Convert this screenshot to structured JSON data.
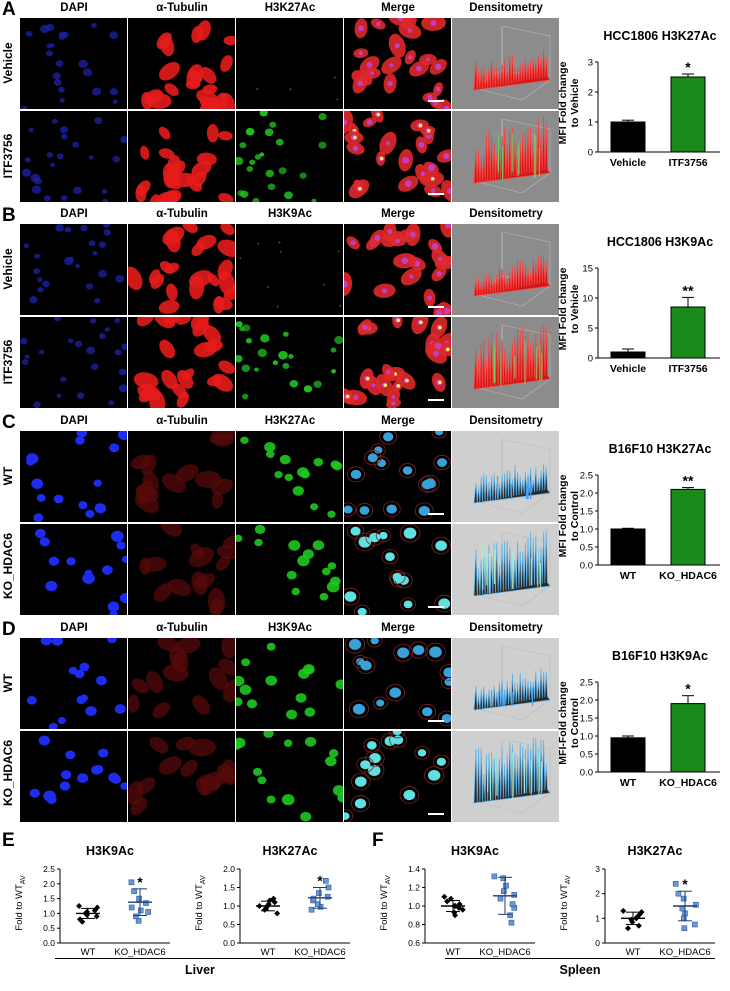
{
  "panels": [
    {
      "letter": "A",
      "headers": [
        "DAPI",
        "α-Tubulin",
        "H3K27Ac",
        "Merge",
        "Densitometry"
      ],
      "rows": [
        "Vehicle",
        "ITF3756"
      ],
      "theme": "hcc",
      "chart_data": {
        "type": "bar",
        "title": "HCC1806 H3K27Ac",
        "ylabel": "MFI Fold change to Vehicle",
        "categories": [
          "Vehicle",
          "ITF3756"
        ],
        "values": [
          1.0,
          2.5
        ],
        "errors": [
          0.06,
          0.1
        ],
        "colors": [
          "#000000",
          "#1a8a1a"
        ],
        "ylim": [
          0,
          3
        ],
        "yticks": [
          "0",
          "1",
          "2",
          "3"
        ],
        "significance": [
          "",
          "*"
        ]
      }
    },
    {
      "letter": "B",
      "headers": [
        "DAPI",
        "α-Tubulin",
        "H3K9Ac",
        "Merge",
        "Densitometry"
      ],
      "rows": [
        "Vehicle",
        "ITF3756"
      ],
      "theme": "hcc",
      "chart_data": {
        "type": "bar",
        "title": "HCC1806 H3K9Ac",
        "ylabel": "MFI Fold change to Vehicle",
        "categories": [
          "Vehicle",
          "ITF3756"
        ],
        "values": [
          1.0,
          8.5
        ],
        "errors": [
          0.5,
          1.6
        ],
        "colors": [
          "#000000",
          "#1a8a1a"
        ],
        "ylim": [
          0,
          15
        ],
        "yticks": [
          "0",
          "5",
          "10",
          "15"
        ],
        "significance": [
          "",
          "**"
        ]
      }
    },
    {
      "letter": "C",
      "headers": [
        "DAPI",
        "α-Tubulin",
        "H3K27Ac",
        "Merge",
        "Densitometry"
      ],
      "rows": [
        "WT",
        "KO_HDAC6"
      ],
      "theme": "b16",
      "chart_data": {
        "type": "bar",
        "title": "B16F10 H3K27Ac",
        "ylabel": "MFI Fold change to Control",
        "categories": [
          "WT",
          "KO_HDAC6"
        ],
        "values": [
          1.0,
          2.1
        ],
        "errors": [
          0.02,
          0.05
        ],
        "colors": [
          "#000000",
          "#1a8a1a"
        ],
        "ylim": [
          0,
          2.5
        ],
        "yticks": [
          "0.0",
          "0.5",
          "1.0",
          "1.5",
          "2.0",
          "2.5"
        ],
        "significance": [
          "",
          "**"
        ]
      }
    },
    {
      "letter": "D",
      "headers": [
        "DAPI",
        "α-Tubulin",
        "H3K9Ac",
        "Merge",
        "Densitometry"
      ],
      "rows": [
        "WT",
        "KO_HDAC6"
      ],
      "theme": "b16",
      "chart_data": {
        "type": "bar",
        "title": "B16F10 H3K9Ac",
        "ylabel": "MFI-Fold change to Control",
        "categories": [
          "WT",
          "KO_HDAC6"
        ],
        "values": [
          0.95,
          1.9
        ],
        "errors": [
          0.05,
          0.22
        ],
        "colors": [
          "#000000",
          "#1a8a1a"
        ],
        "ylim": [
          0,
          2.5
        ],
        "yticks": [
          "0.0",
          "0.5",
          "1.0",
          "1.5",
          "2.0",
          "2.5"
        ],
        "significance": [
          "",
          "*"
        ]
      }
    }
  ],
  "bottom": {
    "E": {
      "letter": "E",
      "group": "Liver"
    },
    "F": {
      "letter": "F",
      "group": "Spleen"
    },
    "ylabel_prefix": "Fold  to WT",
    "ylabel_sub": "AV"
  },
  "scatter_charts": [
    {
      "type": "scatter",
      "title": "H3K9Ac",
      "categories": [
        "WT",
        "KO_HDAC6"
      ],
      "ylim": [
        0,
        2.5
      ],
      "yticks": [
        "0.0",
        "0.5",
        "1.0",
        "1.5",
        "2.0",
        "2.5"
      ],
      "series": [
        {
          "values": [
            0.72,
            0.8,
            0.9,
            0.95,
            1.0,
            1.05,
            1.1,
            1.2,
            1.25
          ],
          "mean": 1.0,
          "sd": 0.17
        },
        {
          "values": [
            0.75,
            0.9,
            1.05,
            1.1,
            1.2,
            1.35,
            1.5,
            1.75,
            2.05
          ],
          "mean": 1.38,
          "sd": 0.45
        }
      ],
      "significance": "*"
    },
    {
      "type": "scatter",
      "title": "H3K27Ac",
      "categories": [
        "WT",
        "KO_HDAC6"
      ],
      "ylim": [
        0,
        2.0
      ],
      "yticks": [
        "0.0",
        "0.5",
        "1.0",
        "1.5",
        "2.0"
      ],
      "series": [
        {
          "values": [
            0.8,
            0.9,
            0.95,
            1.0,
            1.0,
            1.05,
            1.1,
            1.15,
            1.2
          ],
          "mean": 1.0,
          "sd": 0.13
        },
        {
          "values": [
            0.9,
            0.98,
            1.05,
            1.15,
            1.2,
            1.25,
            1.35,
            1.5,
            1.68
          ],
          "mean": 1.22,
          "sd": 0.28
        }
      ],
      "significance": "*"
    },
    {
      "type": "scatter",
      "title": "H3K9Ac",
      "categories": [
        "WT",
        "KO_HDAC6"
      ],
      "ylim": [
        0.6,
        1.4
      ],
      "yticks": [
        "0.6",
        "0.8",
        "1.0",
        "1.2",
        "1.4"
      ],
      "series": [
        {
          "values": [
            0.9,
            0.93,
            0.96,
            0.98,
            1.0,
            1.0,
            1.02,
            1.05,
            1.08,
            1.1
          ],
          "mean": 1.0,
          "sd": 0.06
        },
        {
          "values": [
            0.82,
            0.9,
            0.98,
            1.02,
            1.08,
            1.12,
            1.16,
            1.22,
            1.3,
            1.32
          ],
          "mean": 1.11,
          "sd": 0.2
        }
      ],
      "significance": ""
    },
    {
      "type": "scatter",
      "title": "H3K27Ac",
      "categories": [
        "WT",
        "KO_HDAC6"
      ],
      "ylim": [
        0,
        3
      ],
      "yticks": [
        "0",
        "1",
        "2",
        "3"
      ],
      "series": [
        {
          "values": [
            0.6,
            0.7,
            0.85,
            0.95,
            1.0,
            1.05,
            1.15,
            1.25,
            1.3
          ],
          "mean": 1.0,
          "sd": 0.25
        },
        {
          "values": [
            0.6,
            0.75,
            1.0,
            1.2,
            1.4,
            1.55,
            1.8,
            2.0,
            2.4
          ],
          "mean": 1.5,
          "sd": 0.6
        }
      ],
      "significance": "*"
    }
  ]
}
